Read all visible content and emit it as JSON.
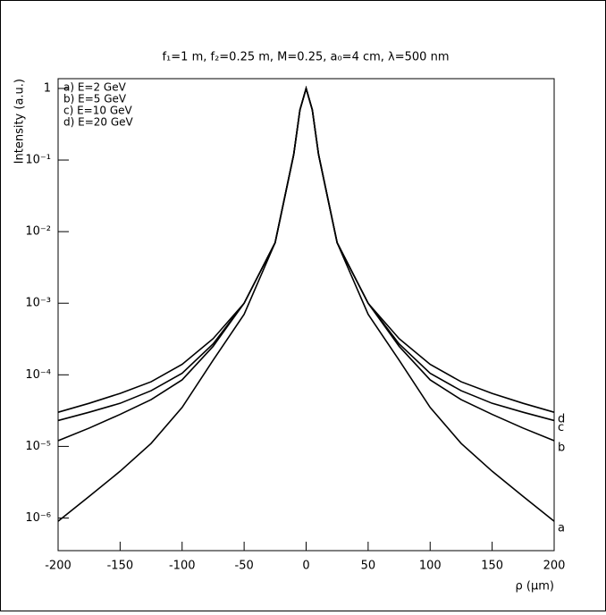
{
  "chart_data": {
    "type": "line",
    "title": "f₁=1 m, f₂=0.25 m, M=0.25, a₀=4 cm, λ=500 nm",
    "x_label": "ρ (μm)",
    "y_label": "Intensity (a.u.)",
    "y_log": true,
    "x": [
      -200,
      -175,
      -150,
      -125,
      -100,
      -75,
      -50,
      -25,
      -10,
      -5,
      0,
      5,
      10,
      25,
      50,
      75,
      100,
      125,
      150,
      175,
      200
    ],
    "series": [
      {
        "name": "a) E=2 GeV",
        "end_label": "a",
        "color": "#000000",
        "values": [
          9e-07,
          2e-06,
          4.5e-06,
          1.1e-05,
          3.5e-05,
          0.00016,
          0.0007,
          0.007,
          0.12,
          0.5,
          1,
          0.5,
          0.12,
          0.007,
          0.0007,
          0.00016,
          3.5e-05,
          1.1e-05,
          4.5e-06,
          2e-06,
          9e-07
        ]
      },
      {
        "name": "b) E=5 GeV",
        "end_label": "b",
        "color": "#000000",
        "values": [
          1.2e-05,
          1.8e-05,
          2.8e-05,
          4.5e-05,
          8.5e-05,
          0.00025,
          0.001,
          0.007,
          0.12,
          0.5,
          1,
          0.5,
          0.12,
          0.007,
          0.001,
          0.00025,
          8.5e-05,
          4.5e-05,
          2.8e-05,
          1.8e-05,
          1.2e-05
        ]
      },
      {
        "name": "c) E=10 GeV",
        "end_label": "c",
        "color": "#000000",
        "values": [
          2.3e-05,
          3e-05,
          4e-05,
          6e-05,
          0.000105,
          0.00027,
          0.001,
          0.007,
          0.12,
          0.5,
          1,
          0.5,
          0.12,
          0.007,
          0.001,
          0.00027,
          0.000105,
          6e-05,
          4e-05,
          3e-05,
          2.3e-05
        ]
      },
      {
        "name": "d) E=20 GeV",
        "end_label": "d",
        "color": "#000000",
        "values": [
          3e-05,
          4e-05,
          5.5e-05,
          8e-05,
          0.00014,
          0.00032,
          0.001,
          0.007,
          0.12,
          0.5,
          1,
          0.5,
          0.12,
          0.007,
          0.001,
          0.00032,
          0.00014,
          8e-05,
          5.5e-05,
          4e-05,
          3e-05
        ]
      }
    ],
    "xlim": [
      -200,
      200
    ],
    "xticks": [
      -200,
      -150,
      -100,
      -50,
      0,
      50,
      100,
      150,
      200
    ],
    "ylim": [
      3.5e-07,
      1.37
    ],
    "yticks": [
      {
        "value": 1e-06,
        "label": "10⁻⁶"
      },
      {
        "value": 1e-05,
        "label": "10⁻⁵"
      },
      {
        "value": 0.0001,
        "label": "10⁻⁴"
      },
      {
        "value": 0.001,
        "label": "10⁻³"
      },
      {
        "value": 0.01,
        "label": "10⁻²"
      },
      {
        "value": 0.1,
        "label": "10⁻¹"
      },
      1
    ]
  }
}
